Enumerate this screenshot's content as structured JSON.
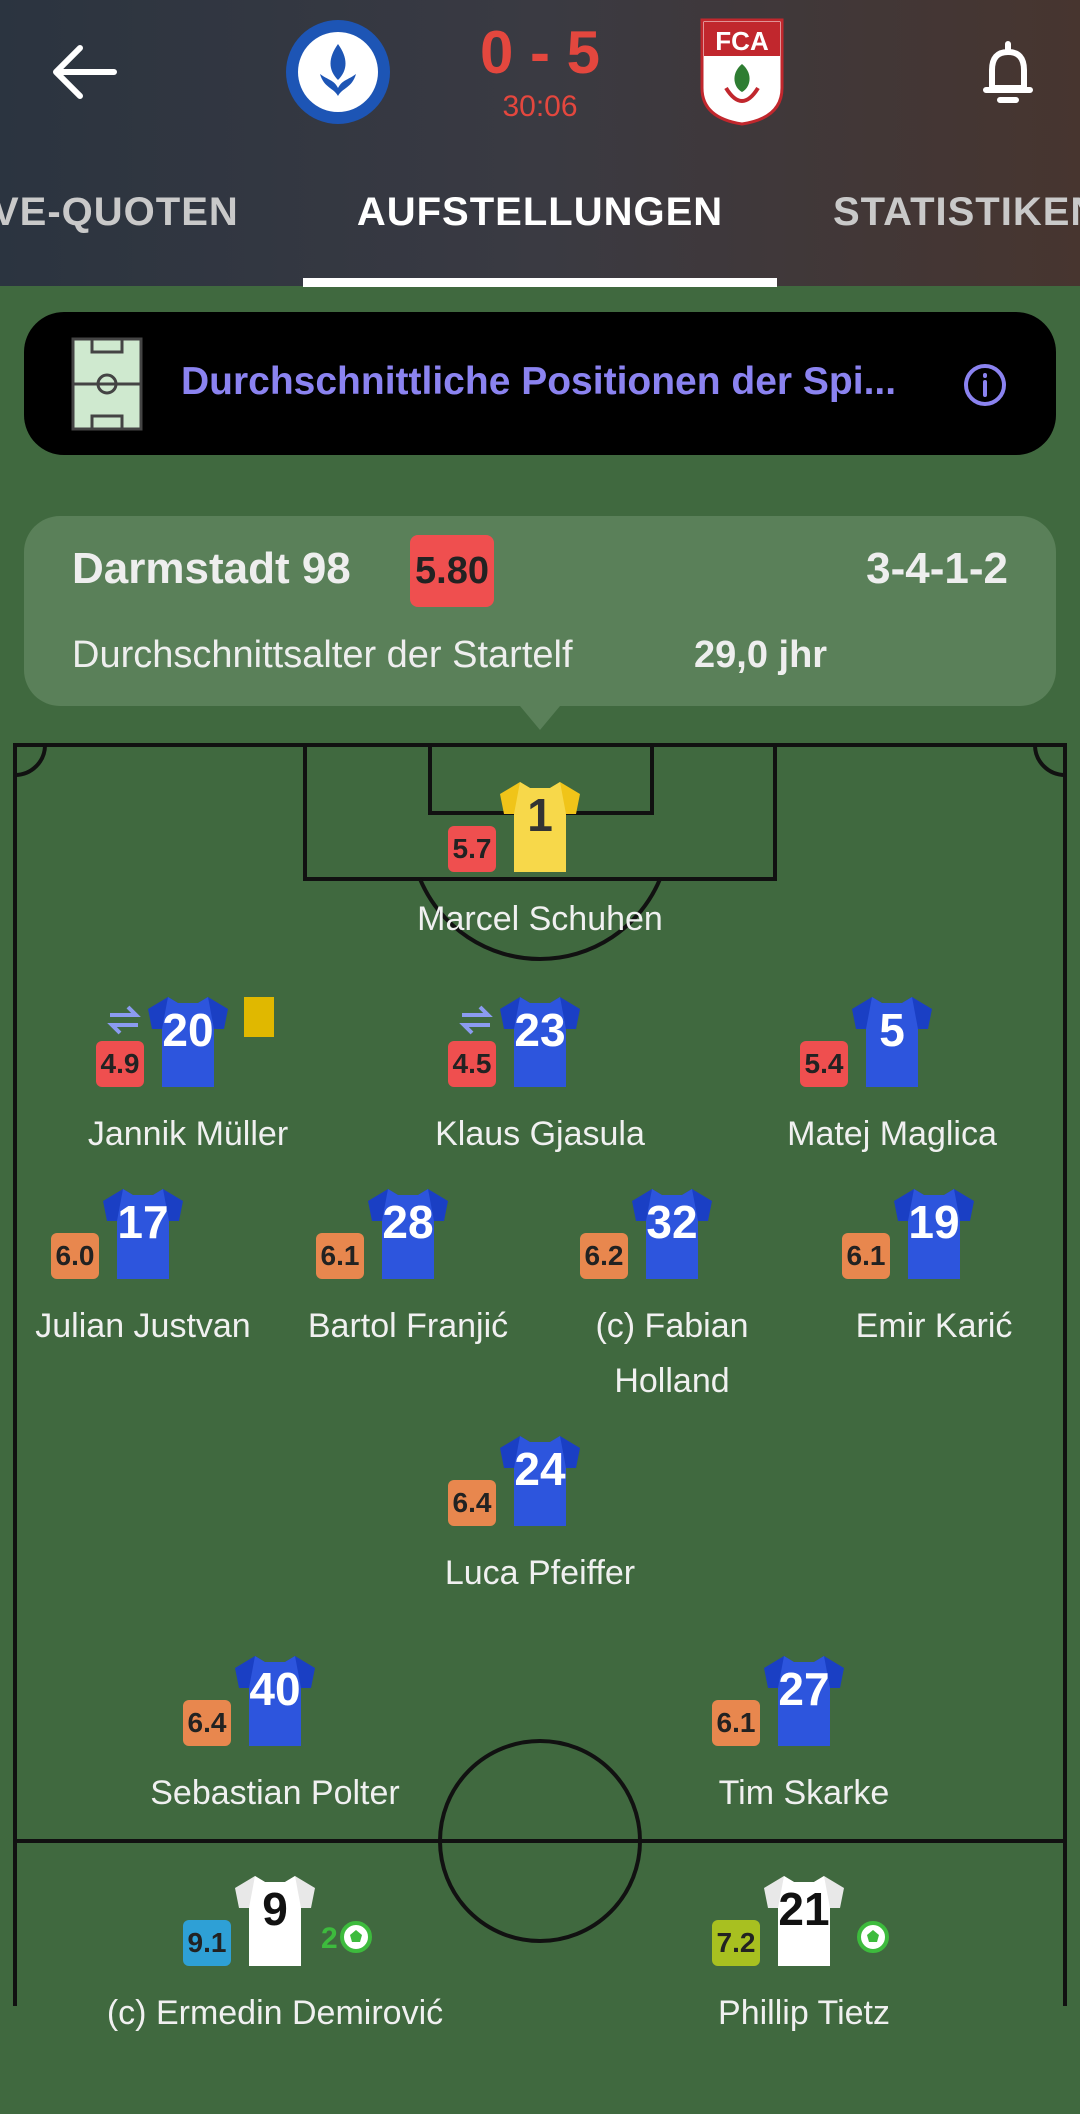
{
  "header": {
    "score": "0 - 5",
    "time": "30:06"
  },
  "tabs": [
    "VE-QUOTEN",
    "AUFSTELLUNGEN",
    "STATISTIKEN"
  ],
  "banner": {
    "text": "Durchschnittliche Positionen der Spi..."
  },
  "team": {
    "name": "Darmstadt 98",
    "rating": "5.80",
    "formation": "3-4-1-2",
    "age_label": "Durchschnittsalter der Startelf",
    "age_value": "29,0 jhr"
  },
  "players": [
    {
      "number": "1",
      "rating": "5.7",
      "name": "Marcel Schuhen"
    },
    {
      "number": "20",
      "rating": "4.9",
      "name": "Jannik Müller"
    },
    {
      "number": "23",
      "rating": "4.5",
      "name": "Klaus Gjasula"
    },
    {
      "number": "5",
      "rating": "5.4",
      "name": "Matej Maglica"
    },
    {
      "number": "17",
      "rating": "6.0",
      "name": "Julian Justvan"
    },
    {
      "number": "28",
      "rating": "6.1",
      "name": "Bartol Franjić"
    },
    {
      "number": "32",
      "rating": "6.2",
      "name": "(c) Fabian Holland"
    },
    {
      "number": "19",
      "rating": "6.1",
      "name": "Emir Karić"
    },
    {
      "number": "24",
      "rating": "6.4",
      "name": "Luca Pfeiffer"
    },
    {
      "number": "40",
      "rating": "6.4",
      "name": "Sebastian Polter"
    },
    {
      "number": "27",
      "rating": "6.1",
      "name": "Tim Skarke"
    },
    {
      "number": "9",
      "rating": "9.1",
      "name": "(c) Ermedin Demirović",
      "goals": "2"
    },
    {
      "number": "21",
      "rating": "7.2",
      "name": "Phillip Tietz"
    }
  ]
}
